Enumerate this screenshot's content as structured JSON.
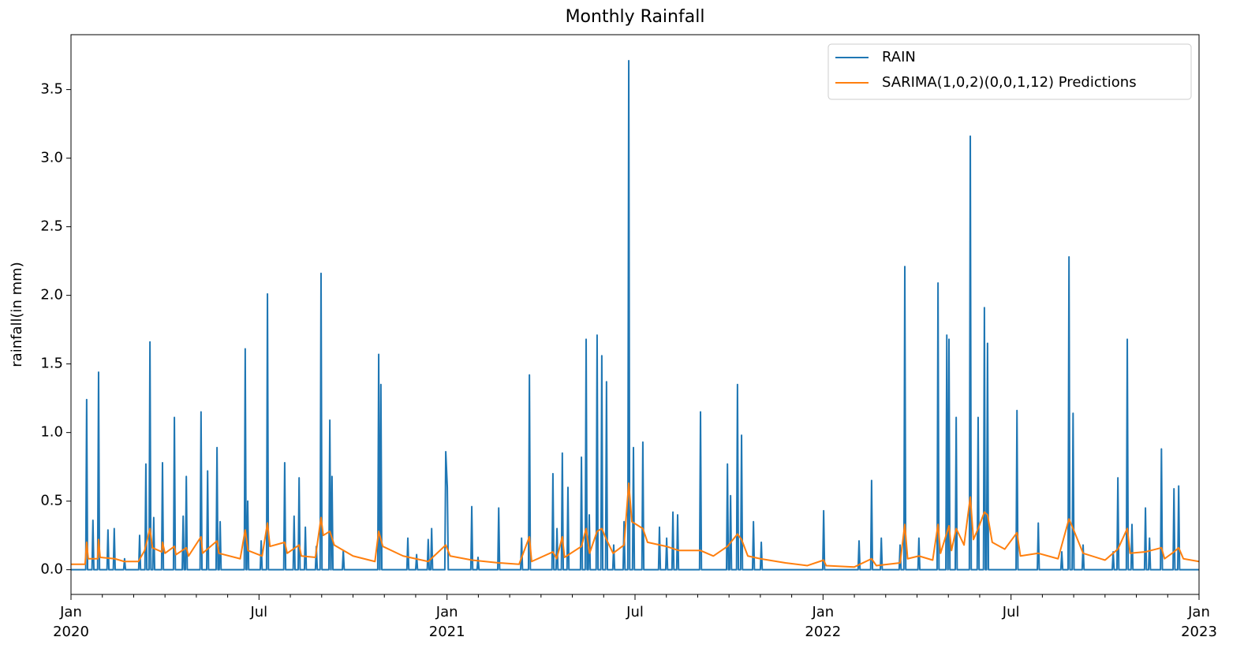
{
  "chart_data": {
    "type": "line",
    "title": "Monthly Rainfall",
    "y_label": "rainfall(in mm)",
    "xlim": [
      0,
      36
    ],
    "xticks": [
      {
        "value": 0,
        "label": "Jan\n2020"
      },
      {
        "value": 6,
        "label": "Jul"
      },
      {
        "value": 12,
        "label": "Jan\n2021"
      },
      {
        "value": 18,
        "label": "Jul"
      },
      {
        "value": 24,
        "label": "Jan\n2022"
      },
      {
        "value": 30,
        "label": "Jul"
      },
      {
        "value": 36,
        "label": "Jan\n2023"
      }
    ],
    "xminorticks": [
      1,
      2,
      3,
      4,
      5,
      7,
      8,
      9,
      10,
      11,
      13,
      14,
      15,
      16,
      17,
      19,
      20,
      21,
      22,
      23,
      25,
      26,
      27,
      28,
      29,
      31,
      32,
      33,
      34,
      35
    ],
    "ylim": [
      -0.18,
      3.9
    ],
    "yticks": [
      {
        "value": 0,
        "label": "0.0"
      },
      0.5,
      {
        "value": 1,
        "label": "1.0"
      },
      1.5,
      {
        "value": 2,
        "label": "2.0"
      },
      2.5,
      {
        "value": 3,
        "label": "3.0"
      },
      3.5
    ],
    "grid": false,
    "legend": "upper right",
    "series": [
      {
        "name": "RAIN",
        "color": "#1f77b4",
        "x": [
          0,
          0.47,
          0.5,
          0.53,
          0.67,
          0.7,
          0.73,
          0.85,
          0.88,
          0.91,
          1.15,
          1.18,
          1.21,
          1.35,
          1.38,
          1.41,
          1.68,
          1.71,
          1.74,
          2.16,
          2.19,
          2.22,
          2.36,
          2.39,
          2.42,
          2.49,
          2.52,
          2.55,
          2.61,
          2.64,
          2.67,
          2.89,
          2.92,
          2.95,
          3.27,
          3.3,
          3.33,
          3.55,
          3.58,
          3.61,
          3.65,
          3.68,
          3.71,
          4.12,
          4.15,
          4.18,
          4.33,
          4.36,
          4.39,
          4.63,
          4.66,
          4.69,
          4.73,
          4.76,
          4.79,
          5.53,
          5.56,
          5.59,
          5.61,
          5.64,
          5.67,
          6.04,
          6.07,
          6.1,
          6.24,
          6.27,
          6.3,
          6.79,
          6.82,
          6.85,
          7.09,
          7.12,
          7.15,
          7.25,
          7.28,
          7.31,
          7.45,
          7.48,
          7.51,
          7.8,
          7.83,
          7.86,
          7.95,
          7.98,
          8.01,
          8.23,
          8.26,
          8.29,
          8.3,
          8.33,
          8.36,
          8.66,
          8.69,
          8.72,
          9.79,
          9.82,
          9.85,
          9.86,
          9.89,
          9.92,
          10.72,
          10.75,
          10.78,
          11,
          11.03,
          11.06,
          11.37,
          11.4,
          11.43,
          11.48,
          11.51,
          11.54,
          11.93,
          11.96,
          12.01,
          12.04,
          12.76,
          12.79,
          12.82,
          12.96,
          12.99,
          13.02,
          13.62,
          13.65,
          13.68,
          14.35,
          14.38,
          14.41,
          14.6,
          14.63,
          14.66,
          15.35,
          15.38,
          15.41,
          15.48,
          15.51,
          15.54,
          15.65,
          15.68,
          15.71,
          15.83,
          15.86,
          15.89,
          16.26,
          16.29,
          16.32,
          16.41,
          16.44,
          16.47,
          16.51,
          16.54,
          16.57,
          16.76,
          16.79,
          16.82,
          16.91,
          16.94,
          16.97,
          17.06,
          17.09,
          17.12,
          17.29,
          17.32,
          17.35,
          17.62,
          17.65,
          17.68,
          17.77,
          17.8,
          17.83,
          17.92,
          17.95,
          17.98,
          18.22,
          18.25,
          18.28,
          18.75,
          18.78,
          18.81,
          18.98,
          19.01,
          19.04,
          19.18,
          19.21,
          19.24,
          19.33,
          19.36,
          19.39,
          20.06,
          20.09,
          20.12,
          20.92,
          20.95,
          20.98,
          21.02,
          21.05,
          21.08,
          21.24,
          21.27,
          21.3,
          21.37,
          21.4,
          21.43,
          21.75,
          21.78,
          21.81,
          22,
          22.03,
          22.06,
          23.99,
          24.02,
          24.05,
          25.12,
          25.15,
          25.18,
          25.52,
          25.55,
          25.58,
          25.83,
          25.86,
          25.89,
          26.43,
          26.46,
          26.49,
          26.58,
          26.61,
          26.64,
          27.03,
          27.06,
          27.09,
          27.64,
          27.67,
          27.7,
          27.92,
          27.95,
          27.98,
          27.99,
          28.02,
          28.05,
          28.22,
          28.25,
          28.28,
          28.67,
          28.7,
          28.73,
          28.92,
          28.95,
          28.98,
          29.12,
          29.15,
          29.18,
          29.22,
          29.25,
          29.28,
          30.16,
          30.19,
          30.22,
          30.84,
          30.87,
          30.9,
          31.59,
          31.62,
          31.65,
          31.82,
          31.85,
          31.88,
          31.95,
          31.98,
          32.01,
          32.27,
          32.3,
          32.33,
          33.23,
          33.26,
          33.29,
          33.38,
          33.41,
          33.44,
          33.68,
          33.71,
          33.74,
          33.83,
          33.86,
          33.89,
          34.26,
          34.29,
          34.32,
          34.39,
          34.42,
          34.45,
          34.77,
          34.8,
          34.83,
          35.17,
          35.2,
          35.23,
          35.32,
          35.35,
          35.38,
          36
        ],
        "values": [
          0,
          0,
          1.24,
          0,
          0,
          0.36,
          0,
          0,
          1.44,
          0,
          0,
          0.29,
          0,
          0,
          0.3,
          0,
          0,
          0.08,
          0,
          0,
          0.25,
          0,
          0,
          0.77,
          0,
          0,
          1.66,
          0,
          0,
          0.38,
          0,
          0,
          0.78,
          0,
          0,
          1.11,
          0,
          0,
          0.39,
          0,
          0,
          0.68,
          0,
          0,
          1.15,
          0,
          0,
          0.72,
          0,
          0,
          0.89,
          0,
          0,
          0.35,
          0,
          0,
          1.61,
          0,
          0,
          0.5,
          0,
          0,
          0.21,
          0,
          0,
          2.01,
          0,
          0,
          0.78,
          0,
          0,
          0.39,
          0,
          0,
          0.67,
          0,
          0,
          0.31,
          0,
          0,
          0.17,
          0,
          0,
          2.16,
          0,
          0,
          1.09,
          0,
          0,
          0.68,
          0,
          0,
          0.14,
          0,
          0,
          1.57,
          0,
          0,
          1.35,
          0,
          0,
          0.23,
          0,
          0,
          0.11,
          0,
          0,
          0.22,
          0,
          0,
          0.3,
          0,
          0,
          0.86,
          0.6,
          0,
          0,
          0.46,
          0,
          0,
          0.09,
          0,
          0,
          0.45,
          0,
          0,
          0.23,
          0,
          0,
          1.42,
          0,
          0,
          0.7,
          0,
          0,
          0.3,
          0,
          0,
          0.85,
          0,
          0,
          0.6,
          0,
          0,
          0.82,
          0,
          0,
          1.68,
          0,
          0,
          0.4,
          0,
          0,
          1.71,
          0,
          0,
          1.56,
          0,
          0,
          1.37,
          0,
          0,
          0.18,
          0,
          0,
          0.35,
          0,
          0,
          3.71,
          0,
          0,
          0.89,
          0,
          0,
          0.93,
          0,
          0,
          0.31,
          0,
          0,
          0.23,
          0,
          0,
          0.42,
          0,
          0,
          0.4,
          0,
          0,
          1.15,
          0,
          0,
          0.77,
          0,
          0,
          0.54,
          0,
          0,
          1.35,
          0,
          0,
          0.98,
          0,
          0,
          0.35,
          0,
          0,
          0.2,
          0,
          0,
          0.43,
          0,
          0,
          0.21,
          0,
          0,
          0.65,
          0,
          0,
          0.23,
          0,
          0,
          0.18,
          0,
          0,
          2.21,
          0,
          0,
          0.23,
          0,
          0,
          2.09,
          0,
          0,
          1.71,
          0,
          0,
          1.68,
          0,
          0,
          1.11,
          0,
          0,
          3.16,
          0,
          0,
          1.11,
          0,
          0,
          1.91,
          0,
          0,
          1.65,
          0,
          0,
          1.16,
          0,
          0,
          0.34,
          0,
          0,
          0.13,
          0,
          0,
          2.28,
          0,
          0,
          1.14,
          0,
          0,
          0.18,
          0,
          0,
          0.13,
          0,
          0,
          0.67,
          0,
          0,
          1.68,
          0,
          0,
          0.33,
          0,
          0,
          0.45,
          0,
          0,
          0.23,
          0,
          0,
          0.88,
          0,
          0,
          0.59,
          0,
          0,
          0.61,
          0,
          0
        ]
      },
      {
        "name": "SARIMA(1,0,2)(0,0,1,12) Predictions",
        "color": "#ff7f0e",
        "x": [
          0,
          0.45,
          0.5,
          0.55,
          0.85,
          0.88,
          0.93,
          1.4,
          1.7,
          2.15,
          2.35,
          2.52,
          2.6,
          2.9,
          2.92,
          3.0,
          3.3,
          3.35,
          3.68,
          3.75,
          4.15,
          4.2,
          4.66,
          4.72,
          5.4,
          5.56,
          5.65,
          6.1,
          6.27,
          6.35,
          6.82,
          6.9,
          7.28,
          7.35,
          7.8,
          7.98,
          8.05,
          8.26,
          8.4,
          9.0,
          9.7,
          9.82,
          9.95,
          10.6,
          11.4,
          11.96,
          12.1,
          12.8,
          13.65,
          14.3,
          14.63,
          14.7,
          15.38,
          15.5,
          15.68,
          15.75,
          16.29,
          16.44,
          16.55,
          16.79,
          16.94,
          17.09,
          17.3,
          17.65,
          17.8,
          17.9,
          18.25,
          18.4,
          19.0,
          19.4,
          20.09,
          20.5,
          20.95,
          21.27,
          21.4,
          21.6,
          22.0,
          22.8,
          23.5,
          24.02,
          24.1,
          25.0,
          25.55,
          25.7,
          26.46,
          26.61,
          26.7,
          27.06,
          27.5,
          27.67,
          27.75,
          28.02,
          28.1,
          28.25,
          28.5,
          28.7,
          28.8,
          28.95,
          29.15,
          29.25,
          29.4,
          29.8,
          30.19,
          30.3,
          30.87,
          31.5,
          31.85,
          31.98,
          32.3,
          33.0,
          33.41,
          33.71,
          33.8,
          34.29,
          34.8,
          34.9,
          35.2,
          35.35,
          35.5,
          36
        ],
        "values": [
          0.04,
          0.04,
          0.2,
          0.08,
          0.08,
          0.22,
          0.09,
          0.08,
          0.06,
          0.06,
          0.14,
          0.3,
          0.16,
          0.13,
          0.2,
          0.12,
          0.17,
          0.11,
          0.16,
          0.1,
          0.24,
          0.12,
          0.21,
          0.12,
          0.08,
          0.29,
          0.14,
          0.1,
          0.34,
          0.17,
          0.2,
          0.12,
          0.18,
          0.1,
          0.09,
          0.38,
          0.25,
          0.28,
          0.18,
          0.1,
          0.06,
          0.28,
          0.17,
          0.1,
          0.06,
          0.18,
          0.1,
          0.07,
          0.05,
          0.04,
          0.24,
          0.06,
          0.13,
          0.08,
          0.24,
          0.09,
          0.17,
          0.3,
          0.12,
          0.28,
          0.3,
          0.22,
          0.12,
          0.18,
          0.63,
          0.35,
          0.3,
          0.2,
          0.17,
          0.14,
          0.14,
          0.1,
          0.17,
          0.26,
          0.22,
          0.1,
          0.08,
          0.05,
          0.03,
          0.07,
          0.03,
          0.02,
          0.08,
          0.03,
          0.05,
          0.33,
          0.08,
          0.1,
          0.07,
          0.33,
          0.12,
          0.32,
          0.14,
          0.3,
          0.18,
          0.53,
          0.22,
          0.3,
          0.42,
          0.4,
          0.2,
          0.15,
          0.27,
          0.1,
          0.12,
          0.08,
          0.37,
          0.3,
          0.12,
          0.07,
          0.15,
          0.3,
          0.12,
          0.13,
          0.16,
          0.08,
          0.13,
          0.16,
          0.08,
          0.06
        ]
      }
    ]
  }
}
